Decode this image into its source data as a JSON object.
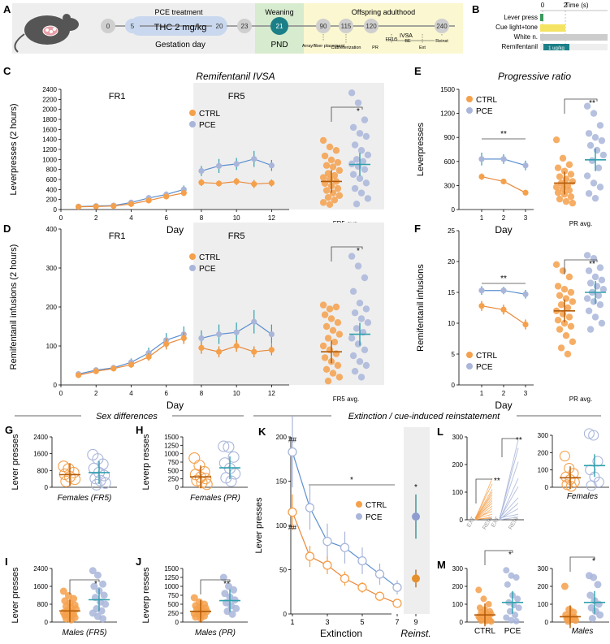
{
  "colors": {
    "ctrl": "#F5A04B",
    "pce": "#A9B6DA",
    "ctrl_dark": "#E07B18",
    "pce_dark": "#2FA0AC",
    "teal": "#1B7F87",
    "shade": "#EEEEEE",
    "weaning_green": "#D7EBCF",
    "adult_yellow": "#FBF7D0",
    "pce_blue": "#C9D8EE"
  },
  "panel_a": {
    "letter": "A",
    "pce_treatment": "PCE treatment",
    "thc_dose": "THC 2 mg/kg",
    "gestation_day": "Gestation day",
    "weaning": "Weaning",
    "pnd": "PND",
    "offspring_adulthood": "Offspring adulthood",
    "days": [
      "0",
      "5",
      "20",
      "23",
      "21",
      "90",
      "115",
      "120",
      "240"
    ],
    "ivsa": "IVSA",
    "events": [
      "Array/fiber placement",
      "Catheterization",
      "FR1/5",
      "PR",
      "BE",
      "Ext",
      "Reinst"
    ]
  },
  "panel_b": {
    "letter": "B",
    "time_label": "Time (s)",
    "ticks": [
      "0",
      "2"
    ],
    "rows": [
      "Lever press",
      "Cue light+tone",
      "White n.",
      "Remifentanil"
    ],
    "dose": "1 ug/kg"
  },
  "legend": {
    "ctrl": "CTRL",
    "pce": "PCE"
  },
  "chart_data": [
    {
      "id": "C",
      "type": "line",
      "title": "Remifentanil IVSA",
      "phases": [
        "FR1",
        "FR5"
      ],
      "xlabel": "Day",
      "ylabel": "Leverpresses (2 hours)",
      "x_ticks": [
        "0",
        "2",
        "4",
        "6",
        "8",
        "10",
        "12"
      ],
      "y_ticks": [
        "0",
        "200",
        "400",
        "600",
        "800",
        "1000",
        "1200",
        "1400",
        "1600",
        "1800",
        "2000",
        "2200",
        "2400"
      ],
      "xlim": [
        0,
        13
      ],
      "ylim": [
        0,
        2400
      ],
      "x": [
        1,
        2,
        3,
        4,
        5,
        6,
        7,
        8,
        9,
        10,
        11,
        12
      ],
      "series": [
        {
          "name": "CTRL",
          "values": [
            55,
            60,
            70,
            110,
            180,
            260,
            330,
            540,
            520,
            560,
            510,
            530
          ],
          "err": [
            10,
            10,
            15,
            25,
            40,
            50,
            60,
            70,
            60,
            70,
            80,
            70
          ]
        },
        {
          "name": "PCE",
          "values": [
            60,
            70,
            80,
            140,
            230,
            300,
            400,
            770,
            870,
            910,
            1010,
            880
          ],
          "err": [
            10,
            15,
            20,
            40,
            60,
            60,
            80,
            100,
            140,
            120,
            160,
            110
          ]
        }
      ],
      "scatter": {
        "label": "FR5 avg.",
        "sig": "*",
        "ctrl_mean": 560,
        "pce_mean": 900,
        "ctrl_points": [
          1380,
          1250,
          1180,
          1070,
          990,
          940,
          880,
          850,
          780,
          720,
          680,
          640,
          600,
          560,
          520,
          470,
          420,
          380,
          330,
          280,
          240,
          190,
          140,
          100
        ],
        "pce_points": [
          2330,
          2130,
          1790,
          1640,
          1520,
          1460,
          1290,
          1180,
          1090,
          1000,
          960,
          910,
          860,
          800,
          700,
          620,
          530,
          420,
          330,
          220,
          110
        ]
      }
    },
    {
      "id": "D",
      "type": "line",
      "phases": [
        "FR1",
        "FR5"
      ],
      "xlabel": "Day",
      "ylabel": "Remifentanil infusions (2 hours)",
      "x_ticks": [
        "0",
        "2",
        "4",
        "6",
        "8",
        "10",
        "12"
      ],
      "y_ticks": [
        "0",
        "100",
        "200",
        "300",
        "400"
      ],
      "xlim": [
        0,
        13
      ],
      "ylim": [
        0,
        400
      ],
      "x": [
        1,
        2,
        3,
        4,
        5,
        6,
        7,
        8,
        9,
        10,
        11,
        12
      ],
      "series": [
        {
          "name": "CTRL",
          "values": [
            25,
            35,
            42,
            52,
            72,
            105,
            120,
            95,
            85,
            100,
            85,
            90
          ],
          "err": [
            5,
            5,
            6,
            8,
            10,
            14,
            15,
            15,
            14,
            15,
            14,
            14
          ]
        },
        {
          "name": "PCE",
          "values": [
            28,
            38,
            44,
            58,
            82,
            115,
            130,
            120,
            130,
            135,
            162,
            130
          ],
          "err": [
            5,
            6,
            6,
            10,
            14,
            18,
            20,
            20,
            25,
            25,
            30,
            25
          ]
        }
      ],
      "scatter": {
        "label": "FR5 avg.",
        "sig": "*",
        "ctrl_mean": 85,
        "pce_mean": 130,
        "ctrl_points": [
          205,
          195,
          200,
          180,
          170,
          160,
          150,
          140,
          130,
          120,
          110,
          100,
          90,
          80,
          70,
          60,
          50,
          40,
          30,
          20,
          10
        ],
        "pce_points": [
          330,
          305,
          275,
          240,
          210,
          195,
          185,
          170,
          160,
          145,
          135,
          120,
          105,
          90,
          75,
          60,
          50,
          35,
          20
        ]
      }
    },
    {
      "id": "E",
      "type": "line",
      "title": "Progressive ratio",
      "xlabel": "Day",
      "ylabel": "Leverpresses",
      "x_ticks": [
        "1",
        "2",
        "3"
      ],
      "y_ticks": [
        "0",
        "300",
        "600",
        "900",
        "1200",
        "1500"
      ],
      "ylim": [
        0,
        1500
      ],
      "series": [
        {
          "name": "CTRL",
          "values": [
            410,
            350,
            210
          ],
          "err": [
            40,
            30,
            20
          ]
        },
        {
          "name": "PCE",
          "values": [
            630,
            630,
            550
          ],
          "err": [
            80,
            60,
            60
          ]
        }
      ],
      "line_sig": "**",
      "scatter": {
        "label": "PR avg.",
        "sig": "**",
        "ctrl_mean": 330,
        "pce_mean": 620,
        "ctrl_points": [
          870,
          640,
          560,
          520,
          480,
          440,
          410,
          380,
          350,
          330,
          300,
          280,
          260,
          240,
          210,
          190,
          160,
          130,
          100,
          80
        ],
        "pce_points": [
          1290,
          1200,
          1050,
          950,
          900,
          860,
          800,
          740,
          680,
          610,
          520,
          420,
          330,
          280,
          200,
          140
        ]
      }
    },
    {
      "id": "F",
      "type": "line",
      "xlabel": "Day",
      "ylabel": "Remifentanil infusions",
      "x_ticks": [
        "1",
        "2",
        "3"
      ],
      "y_ticks": [
        "0",
        "5",
        "10",
        "15",
        "20",
        "25"
      ],
      "ylim": [
        0,
        25
      ],
      "series": [
        {
          "name": "CTRL",
          "values": [
            12.8,
            12.2,
            9.8
          ],
          "err": [
            0.8,
            0.8,
            0.8
          ]
        },
        {
          "name": "PCE",
          "values": [
            15.3,
            15.3,
            14.7
          ],
          "err": [
            0.7,
            0.6,
            0.7
          ]
        }
      ],
      "line_sig": "**",
      "scatter": {
        "label": "PR avg.",
        "sig": "**",
        "ctrl_mean": 12,
        "pce_mean": 15,
        "ctrl_points": [
          19.5,
          18.5,
          17.5,
          16,
          15.5,
          15,
          14.5,
          14,
          13.5,
          13,
          12.5,
          12,
          11.5,
          11,
          10.5,
          10,
          9.5,
          9,
          8,
          7,
          6,
          5
        ],
        "pce_points": [
          21,
          20.5,
          19,
          18.5,
          17.5,
          17,
          16.5,
          16,
          15.5,
          15,
          14.5,
          14,
          13.5,
          13,
          12,
          11,
          10,
          9
        ]
      }
    },
    {
      "id": "G",
      "type": "scatter",
      "group_label": "Females (FR5)",
      "ylabel": "Lever presses",
      "y_ticks": [
        "0",
        "800",
        "1600",
        "2400"
      ],
      "ylim": [
        0,
        2400
      ],
      "ctrl_mean": 600,
      "pce_mean": 700,
      "ctrl_points": [
        1000,
        880,
        700,
        620,
        500,
        380,
        280
      ],
      "pce_points": [
        1550,
        1350,
        1100,
        900,
        700,
        560,
        420,
        320,
        200,
        120
      ]
    },
    {
      "id": "H",
      "type": "scatter",
      "group_label": "Females (PR)",
      "ylabel": "Leverp resses",
      "y_ticks": [
        "0",
        "250",
        "500",
        "750",
        "1000",
        "1250",
        "1500"
      ],
      "ylim": [
        0,
        1500
      ],
      "ctrl_mean": 310,
      "pce_mean": 580,
      "ctrl_points": [
        870,
        650,
        460,
        380,
        300,
        260,
        200,
        140,
        90
      ],
      "pce_points": [
        1220,
        1200,
        900,
        720,
        560,
        400,
        280,
        180
      ]
    },
    {
      "id": "I",
      "type": "scatter",
      "group_label": "Males (FR5)",
      "ylabel": "Lever presses",
      "sig": "*",
      "y_ticks": [
        "0",
        "800",
        "1600",
        "2400"
      ],
      "ylim": [
        0,
        2400
      ],
      "ctrl_mean": 500,
      "pce_mean": 1000,
      "ctrl_points": [
        1380,
        1180,
        1050,
        950,
        850,
        760,
        700,
        640,
        580,
        520,
        480,
        430,
        380,
        340,
        300,
        250,
        200,
        150,
        100
      ],
      "pce_points": [
        2300,
        2100,
        1700,
        1600,
        1400,
        1200,
        1100,
        900,
        800,
        600,
        500,
        400,
        250,
        150
      ]
    },
    {
      "id": "J",
      "type": "scatter",
      "group_label": "Males (PR)",
      "ylabel": "Leverp resses",
      "sig": "**",
      "y_ticks": [
        "0",
        "250",
        "500",
        "750",
        "1000",
        "1250",
        "1500"
      ],
      "ylim": [
        0,
        1500
      ],
      "ctrl_mean": 300,
      "pce_mean": 600,
      "ctrl_points": [
        680,
        560,
        500,
        460,
        420,
        390,
        360,
        330,
        300,
        280,
        260,
        230,
        200,
        170,
        140,
        110
      ],
      "pce_points": [
        1250,
        1000,
        900,
        800,
        700,
        620,
        540,
        460,
        380,
        300,
        220
      ]
    },
    {
      "id": "K",
      "type": "line",
      "xlabel": "Extinction",
      "xlabel2": "Reinst.",
      "ylabel": "Lever presses",
      "x_ticks": [
        "1",
        "3",
        "5",
        "7",
        "9"
      ],
      "y_ticks": [
        "0",
        "50",
        "100",
        "150",
        "200"
      ],
      "ylim": [
        0,
        200
      ],
      "x": [
        1,
        2,
        3,
        4,
        5,
        6,
        7
      ],
      "series": [
        {
          "name": "CTRL",
          "values": [
            115,
            65,
            55,
            40,
            30,
            20,
            12
          ],
          "err": [
            20,
            12,
            10,
            8,
            6,
            5,
            4
          ]
        },
        {
          "name": "PCE",
          "values": [
            183,
            120,
            82,
            75,
            60,
            45,
            30
          ],
          "err": [
            40,
            25,
            20,
            18,
            15,
            12,
            8
          ]
        }
      ],
      "reinst": {
        "ctrl": 40,
        "ctrl_err": 10,
        "pce": 110,
        "pce_err": 25,
        "sig": "*"
      },
      "hash_ctrl": "##",
      "hash_pce": "##",
      "line_sig": "*"
    },
    {
      "id": "L",
      "type": "paired",
      "y_ticks": [
        "0",
        "100",
        "200",
        "300"
      ],
      "ylim": [
        0,
        300
      ],
      "x_labels": [
        "EXT",
        "REIN",
        "EXT",
        "REIN"
      ],
      "sig_ctrl": "**",
      "sig_pce": "**"
    },
    {
      "id": "M",
      "type": "scatter",
      "y_ticks": [
        "0",
        "100",
        "200",
        "300"
      ],
      "ylim": [
        0,
        300
      ],
      "x_labels": [
        "CTRL",
        "PCE"
      ],
      "sig": "*",
      "ctrl_mean": 40,
      "pce_mean": 110,
      "ctrl_points": [
        180,
        130,
        100,
        80,
        70,
        60,
        55,
        50,
        45,
        40,
        35,
        30,
        28,
        25,
        20,
        15,
        10,
        8,
        5,
        3
      ],
      "pce_points": [
        290,
        260,
        250,
        210,
        150,
        130,
        110,
        95,
        80,
        60,
        40,
        25,
        10,
        5
      ]
    },
    {
      "id": "N",
      "type": "scatter",
      "group_label": "Females",
      "y_ticks": [
        "0",
        "100",
        "200",
        "300"
      ],
      "ylim": [
        0,
        300
      ],
      "ctrl_mean": 55,
      "pce_mean": 125,
      "ctrl_points": [
        180,
        110,
        80,
        60,
        45,
        30,
        15,
        5
      ],
      "pce_points": [
        310,
        300,
        150,
        100,
        60,
        30,
        10
      ]
    },
    {
      "id": "O",
      "type": "scatter",
      "group_label": "Males",
      "y_ticks": [
        "0",
        "100",
        "200",
        "300"
      ],
      "ylim": [
        0,
        300
      ],
      "sig": "*",
      "ctrl_mean": 30,
      "pce_mean": 110,
      "ctrl_points": [
        200,
        70,
        55,
        40,
        30,
        25,
        20,
        15,
        10,
        5
      ],
      "pce_points": [
        260,
        250,
        210,
        150,
        120,
        100,
        80,
        60,
        40,
        20
      ]
    }
  ],
  "section_sex": "Sex differences",
  "section_ext": "Extinction / cue-induced reinstatement"
}
